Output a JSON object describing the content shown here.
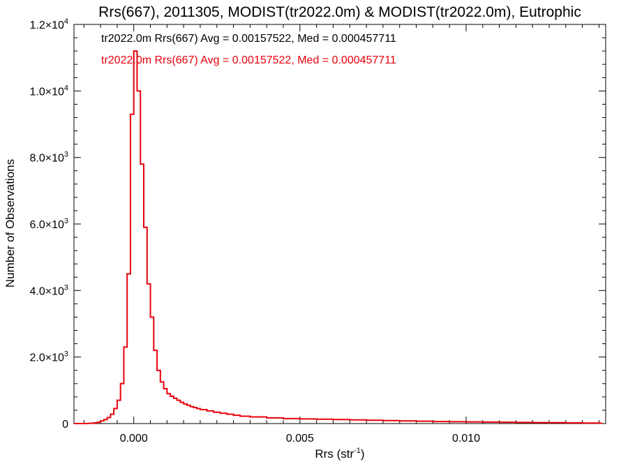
{
  "chart_data": {
    "type": "histogram",
    "title": "Rrs(667), 2011305, MODIST(tr2022.0m) & MODIST(tr2022.0m), Eutrophic",
    "xlabel": {
      "base": "Rrs (str",
      "sup": "-1",
      "tail": ")"
    },
    "ylabel": "Number of Observations",
    "xlim": [
      -0.0018,
      0.0142
    ],
    "ylim": [
      0,
      12000
    ],
    "x_ticks": [
      {
        "value": 0.0,
        "label": "0.000"
      },
      {
        "value": 0.005,
        "label": "0.005"
      },
      {
        "value": 0.01,
        "label": "0.010"
      }
    ],
    "y_ticks": [
      {
        "value": 0,
        "label": "0",
        "sup": ""
      },
      {
        "value": 2000,
        "label": "2.0×10",
        "sup": "3"
      },
      {
        "value": 4000,
        "label": "4.0×10",
        "sup": "3"
      },
      {
        "value": 6000,
        "label": "6.0×10",
        "sup": "3"
      },
      {
        "value": 8000,
        "label": "8.0×10",
        "sup": "3"
      },
      {
        "value": 10000,
        "label": "1.0×10",
        "sup": "4"
      },
      {
        "value": 12000,
        "label": "1.2×10",
        "sup": "4"
      }
    ],
    "legend": [
      {
        "text": "tr2022.0m Rrs(667) Avg = 0.00157522, Med = 0.000457711",
        "color": "#000000"
      },
      {
        "text": "tr2022.0m Rrs(667) Avg = 0.00157522, Med = 0.000457711",
        "color": "#e8000b"
      }
    ],
    "legend_position": "top-left",
    "series": [
      {
        "color": "#e8000b",
        "bin_width": 0.0001,
        "x": [
          -0.0018,
          -0.0017,
          -0.0016,
          -0.0015,
          -0.0014,
          -0.0013,
          -0.0012,
          -0.0011,
          -0.001,
          -0.0009,
          -0.0008,
          -0.0007,
          -0.0006,
          -0.0005,
          -0.0004,
          -0.0003,
          -0.0002,
          -0.0001,
          0.0,
          0.0001,
          0.0002,
          0.0003,
          0.0004,
          0.0005,
          0.0006,
          0.0007,
          0.0008,
          0.0009,
          0.001,
          0.0011,
          0.0012,
          0.0013,
          0.0014,
          0.0015,
          0.0016,
          0.0017,
          0.0018,
          0.0019,
          0.002,
          0.0022,
          0.0024,
          0.0026,
          0.0028,
          0.003,
          0.0032,
          0.0035,
          0.004,
          0.0045,
          0.005,
          0.0055,
          0.006,
          0.0065,
          0.007,
          0.0075,
          0.008,
          0.0085,
          0.009,
          0.0095,
          0.01,
          0.0105,
          0.011,
          0.0115,
          0.012,
          0.0125,
          0.013,
          0.0135,
          0.014
        ],
        "y": [
          0,
          0,
          0,
          0,
          5,
          10,
          20,
          40,
          80,
          120,
          180,
          280,
          450,
          700,
          1200,
          2300,
          4500,
          9300,
          11200,
          10000,
          7800,
          5900,
          4200,
          3200,
          2200,
          1600,
          1250,
          1050,
          900,
          820,
          760,
          700,
          640,
          590,
          550,
          510,
          480,
          450,
          420,
          380,
          340,
          310,
          280,
          250,
          220,
          200,
          170,
          150,
          140,
          130,
          120,
          110,
          100,
          90,
          80,
          70,
          60,
          55,
          50,
          45,
          40,
          35,
          30,
          25,
          20,
          15,
          10
        ]
      }
    ]
  }
}
